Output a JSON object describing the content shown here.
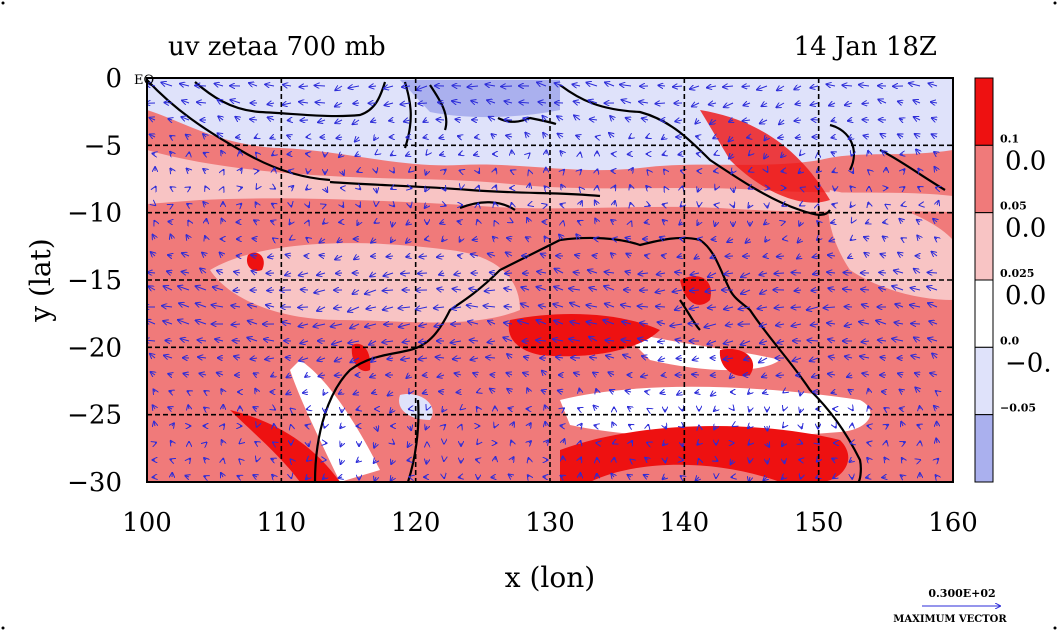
{
  "chart_data": {
    "type": "heatmap",
    "title_left": "uv zetaa 700 mb",
    "title_right": "14 Jan 18Z",
    "xlabel": "x (lon)",
    "ylabel": "y (lat)",
    "xlim": [
      100,
      160
    ],
    "ylim": [
      -30,
      0
    ],
    "x_ticks": [
      100,
      110,
      120,
      130,
      140,
      150,
      160
    ],
    "y_ticks": [
      0,
      -5,
      -10,
      -15,
      -20,
      -25,
      -30
    ],
    "y_tick_labels": [
      "0",
      "−5",
      "−10",
      "−15",
      "−20",
      "−25",
      "−30"
    ],
    "x_tick_labels": [
      "100",
      "110",
      "120",
      "130",
      "140",
      "150",
      "160"
    ],
    "eq_label": "EQ",
    "grid": true,
    "colorbar": {
      "placement": "right",
      "colors": [
        "#ee1111",
        "#f07a7a",
        "#f8c4c4",
        "#ffffff",
        "#dfe2fa",
        "#aab0ee"
      ],
      "small_labels": [
        "0.1",
        "0.05",
        "0.025",
        "0.0",
        "−0.05"
      ],
      "large_labels": [
        "0.0",
        "0.0",
        "0.0",
        "−0."
      ]
    },
    "vector_legend": {
      "value": "0.300E+02",
      "caption": "MAXIMUM VECTOR"
    }
  }
}
